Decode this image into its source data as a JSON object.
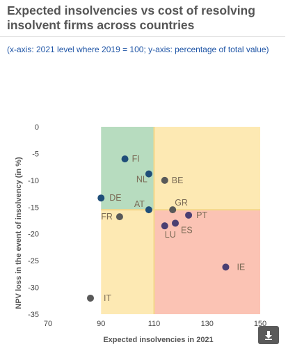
{
  "header": {
    "title": "Expected insolvencies vs cost of resolving insolvent firms across countries",
    "subtitle": "(x-axis: 2021 level where 2019 = 100; y-axis: percentage of total value)"
  },
  "download_icon": "download-arrow-icon",
  "colors": {
    "green_zone": "#b7dcbf",
    "yellow_zone": "#fde9b3",
    "red_zone": "#fbc3b4",
    "divider": "#f4d78a",
    "dark_point": "#1f4e79",
    "grey_point": "#595959",
    "purple_point": "#4b3f72",
    "label": "#7a6a55"
  },
  "chart_data": {
    "type": "scatter",
    "xlabel": "Expected insolvencies in 2021",
    "ylabel": "NPV loss in the event of insolvency (in %)",
    "xlim": [
      70,
      150
    ],
    "ylim": [
      -35,
      0
    ],
    "xticks": [
      70,
      90,
      110,
      130,
      150
    ],
    "yticks": [
      0,
      -5,
      -10,
      -15,
      -20,
      -25,
      -30,
      -35
    ],
    "grid": false,
    "regions": [
      {
        "zone": "green",
        "x": [
          90,
          110
        ],
        "y": [
          -15.5,
          0
        ]
      },
      {
        "zone": "yellow",
        "x": [
          110,
          150
        ],
        "y": [
          -15.5,
          0
        ]
      },
      {
        "zone": "yellow",
        "x": [
          90,
          110
        ],
        "y": [
          -35,
          -15.5
        ]
      },
      {
        "zone": "red",
        "x": [
          110,
          150
        ],
        "y": [
          -35,
          -15.5
        ]
      }
    ],
    "points": [
      {
        "label": "FI",
        "x": 99,
        "y": -6,
        "color": "dark"
      },
      {
        "label": "NL",
        "x": 108,
        "y": -8.8,
        "color": "dark"
      },
      {
        "label": "BE",
        "x": 114,
        "y": -10,
        "color": "grey"
      },
      {
        "label": "DE",
        "x": 90,
        "y": -13.3,
        "color": "dark"
      },
      {
        "label": "AT",
        "x": 108,
        "y": -15.5,
        "color": "dark"
      },
      {
        "label": "GR",
        "x": 117,
        "y": -15.5,
        "color": "grey"
      },
      {
        "label": "FR",
        "x": 97,
        "y": -16.8,
        "color": "grey"
      },
      {
        "label": "PT",
        "x": 123,
        "y": -16.5,
        "color": "purple"
      },
      {
        "label": "LU",
        "x": 114,
        "y": -18.5,
        "color": "purple"
      },
      {
        "label": "ES",
        "x": 118,
        "y": -18,
        "color": "purple"
      },
      {
        "label": "IE",
        "x": 137,
        "y": -26.2,
        "color": "purple"
      },
      {
        "label": "IT",
        "x": 86,
        "y": -32,
        "color": "grey"
      }
    ]
  }
}
